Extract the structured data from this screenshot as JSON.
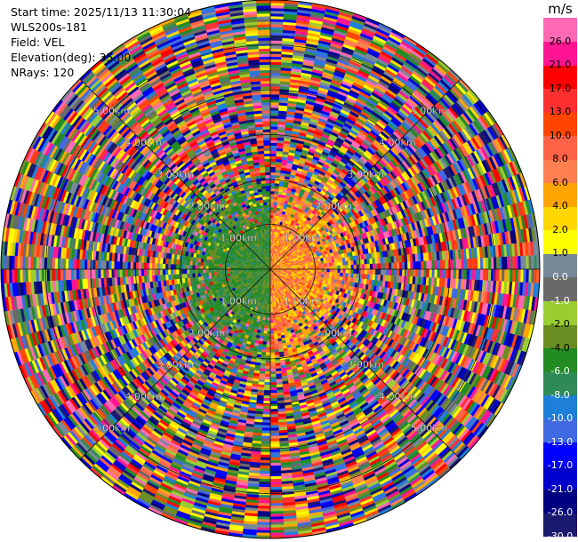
{
  "info": {
    "start_time": "Start time: 2025/11/13 11:30:04",
    "instrument": "WLS200s-181",
    "field": "Field: VEL",
    "elevation": "Elevation(deg): 35.00",
    "nrays": "NRays: 120"
  },
  "colorbar": {
    "unit": "m/s",
    "colors": [
      "#1a1a6e",
      "#000080",
      "#0000cd",
      "#0000ff",
      "#4169e1",
      "#1e7fd8",
      "#2e8b57",
      "#228b22",
      "#6b8e23",
      "#9acd32",
      "#696969",
      "#778899",
      "#ffff00",
      "#ffd700",
      "#ffa500",
      "#ff7f50",
      "#ff6347",
      "#ff4500",
      "#ff3030",
      "#ff0000",
      "#ff1493",
      "#ff69b4"
    ],
    "labels": [
      "-30.0",
      "-26.0",
      "-21.0",
      "-17.0",
      "-13.0",
      "-10.0",
      "-8.0",
      "-6.0",
      "-4.0",
      "-2.0",
      "-1.0",
      "0.0",
      "1.0",
      "2.0",
      "4.0",
      "6.0",
      "8.0",
      "10.0",
      "13.0",
      "17.0",
      "21.0",
      "26.0"
    ]
  },
  "chart_data": {
    "type": "heatmap",
    "projection": "polar PPI (plan position indicator)",
    "field": "VEL",
    "units": "m/s",
    "nrays": 120,
    "elevation_deg": 35.0,
    "range_km_max": 6.0,
    "color_range": [
      -30.0,
      30.0
    ],
    "range_rings_km": [
      1.0,
      2.0,
      3.0,
      4.0,
      5.0,
      6.0
    ],
    "ring_labels": [
      {
        "text": "1.00km",
        "range_km": 1.0
      },
      {
        "text": "2.00km",
        "range_km": 2.0
      },
      {
        "text": "3.00km",
        "range_km": 3.0
      },
      {
        "text": "4.00km",
        "range_km": 4.0
      },
      {
        "text": "5.00km",
        "range_km": 5.0
      }
    ],
    "inner_pattern": {
      "approach_side_deg": [
        180,
        360
      ],
      "approach_velocity_ms": [
        -13.0,
        -6.0
      ],
      "recede_side_deg": [
        0,
        180
      ],
      "recede_velocity_ms": [
        6.0,
        17.0
      ],
      "clean_range_km": 0.9
    },
    "grid": true
  }
}
